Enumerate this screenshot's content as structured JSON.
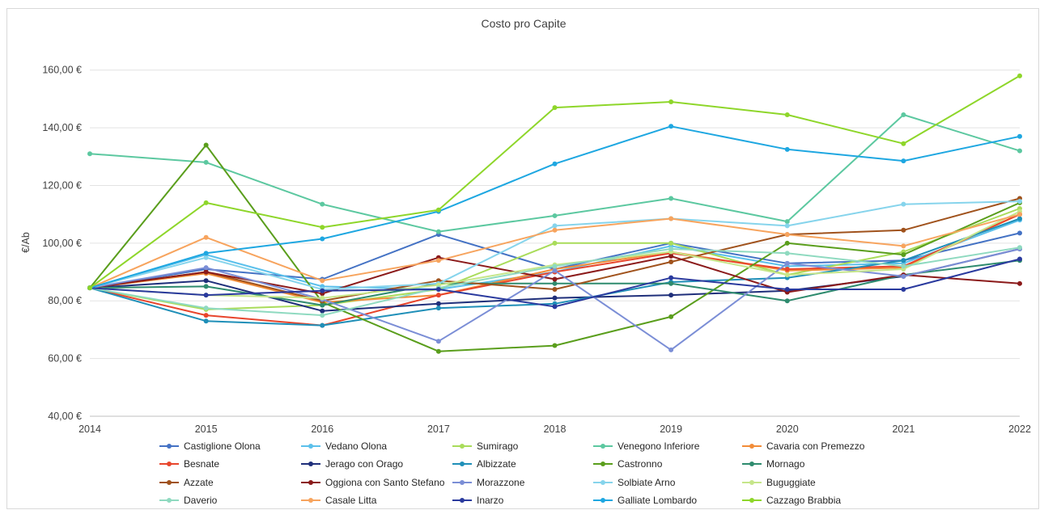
{
  "chart_data": {
    "type": "line",
    "title": "Costo pro Capite",
    "xlabel": "",
    "ylabel": "€/Ab",
    "x": [
      "2014",
      "2015",
      "2016",
      "2017",
      "2018",
      "2019",
      "2020",
      "2021",
      "2022"
    ],
    "ylim": [
      40,
      170
    ],
    "y_ticks": [
      40,
      60,
      80,
      100,
      120,
      140,
      160
    ],
    "y_tick_labels": [
      "40,00 €",
      "60,00 €",
      "80,00 €",
      "100,00 €",
      "120,00 €",
      "140,00 €",
      "160,00 €"
    ],
    "grid": "horizontal",
    "legend_position": "bottom",
    "series": [
      {
        "name": "Castiglione Olona",
        "color": "#4472C4",
        "values": [
          84.5,
          91,
          87.5,
          103,
          91,
          100,
          93,
          94,
          103.5
        ]
      },
      {
        "name": "Vedano Olona",
        "color": "#5BC0EB",
        "values": [
          84.5,
          96,
          85,
          84,
          90,
          99,
          92,
          93,
          108
        ]
      },
      {
        "name": "Sumirago",
        "color": "#A9DC5A",
        "values": [
          84.5,
          77,
          78.5,
          84,
          100,
          100,
          89,
          97,
          112
        ]
      },
      {
        "name": "Venegono Inferiore",
        "color": "#5CC8A0",
        "values": [
          131,
          128,
          113.5,
          104,
          109.5,
          115.5,
          107.5,
          144.5,
          132
        ]
      },
      {
        "name": "Cavaria con Premezzo",
        "color": "#F28C38",
        "values": [
          84.5,
          89.5,
          79.5,
          82,
          91,
          97,
          90.5,
          91.5,
          110
        ]
      },
      {
        "name": "Besnate",
        "color": "#E8452C",
        "values": [
          84.5,
          75,
          71.5,
          82,
          90,
          96.5,
          91,
          92,
          110
        ]
      },
      {
        "name": "Jerago con Orago",
        "color": "#1F2F7A",
        "values": [
          84.5,
          87,
          76.5,
          79,
          81,
          82,
          83.5,
          88.5,
          98
        ]
      },
      {
        "name": "Albizzate",
        "color": "#1F8FB8",
        "values": [
          84.5,
          73,
          71.5,
          77.5,
          79,
          86.5,
          88,
          94,
          108.5
        ]
      },
      {
        "name": "Castronno",
        "color": "#5A9E1C",
        "values": [
          84.5,
          134,
          79.5,
          62.5,
          64.5,
          74.5,
          100,
          96,
          114
        ]
      },
      {
        "name": "Mornago",
        "color": "#2E8B6E",
        "values": [
          84.5,
          85,
          78.5,
          86,
          86,
          86,
          80,
          89,
          94
        ]
      },
      {
        "name": "Azzate",
        "color": "#A0521C",
        "values": [
          84.5,
          90,
          80,
          87,
          84,
          93.5,
          103,
          104.5,
          115.5
        ]
      },
      {
        "name": "Oggiona con Santo Stefano",
        "color": "#8B1A1A",
        "values": [
          84.5,
          90,
          82.5,
          95,
          87.5,
          95.5,
          83,
          89,
          86
        ]
      },
      {
        "name": "Morazzone",
        "color": "#7B8ED6",
        "values": [
          84.5,
          91.5,
          80.5,
          66,
          90.5,
          63,
          93,
          88.5,
          98
        ]
      },
      {
        "name": "Solbiate Arno",
        "color": "#86D4EC",
        "values": [
          84.5,
          95,
          84,
          86,
          106,
          108.5,
          106,
          113.5,
          114.5
        ]
      },
      {
        "name": "Buguggiate",
        "color": "#C6E68A",
        "values": [
          84.5,
          82,
          81,
          85.5,
          92.5,
          97,
          89,
          91,
          111
        ]
      },
      {
        "name": "Daverio",
        "color": "#8FDAC0",
        "values": [
          84.5,
          77.5,
          75,
          84.5,
          92,
          98,
          96.5,
          92,
          98.5
        ]
      },
      {
        "name": "Casale Litta",
        "color": "#F7A45E",
        "values": [
          84.5,
          102,
          87,
          94,
          104.5,
          108.5,
          103,
          99,
          110
        ]
      },
      {
        "name": "Inarzo",
        "color": "#2A3A9E",
        "values": [
          84.5,
          82,
          83.5,
          84,
          78,
          88,
          84,
          84,
          94.5
        ]
      },
      {
        "name": "Galliate Lombardo",
        "color": "#1EA7E1",
        "values": [
          84.5,
          96.5,
          101.5,
          111,
          127.5,
          140.5,
          132.5,
          128.5,
          137
        ]
      },
      {
        "name": "Cazzago Brabbia",
        "color": "#8ED62A",
        "values": [
          84.5,
          114,
          105.5,
          111.5,
          147,
          149,
          144.5,
          134.5,
          158
        ]
      }
    ]
  }
}
